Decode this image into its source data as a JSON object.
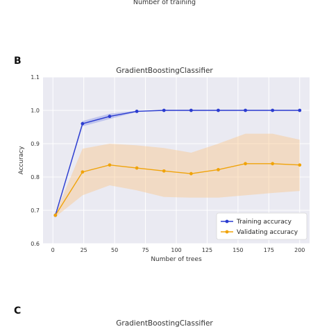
{
  "top_caption": "Number of training",
  "panel_b": "B",
  "panel_c": "C",
  "bottom_title": "GradientBoostingClassifier",
  "chart_data": {
    "type": "line",
    "title": "GradientBoostingClassifier",
    "xlabel": "Number of trees",
    "ylabel": "Accuracy",
    "xlim": [
      -8,
      208
    ],
    "ylim": [
      0.6,
      1.1
    ],
    "xticks": [
      0,
      25,
      50,
      75,
      100,
      125,
      150,
      175,
      200
    ],
    "yticks": [
      0.6,
      0.7,
      0.8,
      0.9,
      1.0,
      1.1
    ],
    "grid": true,
    "legend_position": "lower-right",
    "x": [
      2,
      24,
      46,
      68,
      90,
      112,
      134,
      156,
      178,
      200
    ],
    "series": [
      {
        "name": "Training accuracy",
        "color": "#2a3bd0",
        "values": [
          0.685,
          0.96,
          0.982,
          0.997,
          1.0,
          1.0,
          1.0,
          1.0,
          1.0,
          1.0
        ],
        "upper": [
          0.688,
          0.968,
          0.99,
          0.999,
          1.0,
          1.0,
          1.0,
          1.0,
          1.0,
          1.0
        ],
        "lower": [
          0.682,
          0.952,
          0.974,
          0.995,
          1.0,
          1.0,
          1.0,
          1.0,
          1.0,
          1.0
        ]
      },
      {
        "name": "Validating accuracy",
        "color": "#f0a30a",
        "values": [
          0.685,
          0.815,
          0.836,
          0.827,
          0.818,
          0.81,
          0.822,
          0.84,
          0.84,
          0.836
        ],
        "upper": [
          0.69,
          0.885,
          0.9,
          0.895,
          0.887,
          0.873,
          0.9,
          0.93,
          0.93,
          0.912
        ],
        "lower": [
          0.68,
          0.745,
          0.775,
          0.76,
          0.74,
          0.738,
          0.738,
          0.745,
          0.752,
          0.758
        ]
      }
    ]
  }
}
